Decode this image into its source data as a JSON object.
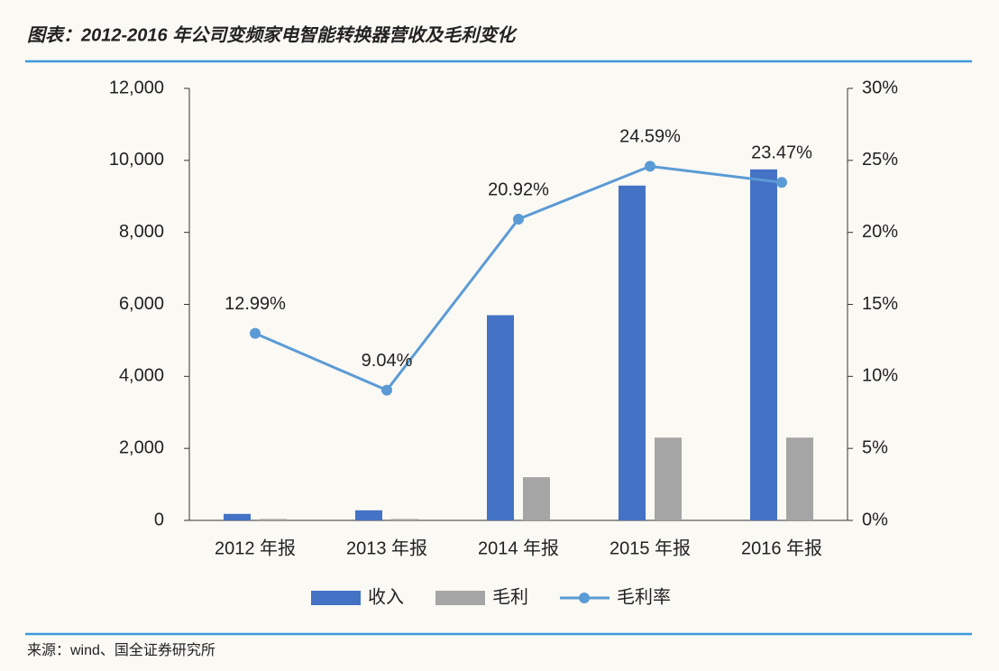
{
  "chart_data": {
    "type": "combo",
    "title": "图表：2012-2016 年公司变频家电智能转换器营收及毛利变化",
    "source": "来源：wind、国全证券研究所",
    "categories": [
      "2012 年报",
      "2013 年报",
      "2014 年报",
      "2015 年报",
      "2016 年报"
    ],
    "series": [
      {
        "name": "收入",
        "type": "bar",
        "color": "#4472c4",
        "values": [
          180,
          280,
          5700,
          9300,
          9750
        ]
      },
      {
        "name": "毛利",
        "type": "bar",
        "color": "#a5a5a5",
        "values": [
          40,
          40,
          1200,
          2300,
          2300
        ]
      },
      {
        "name": "毛利率",
        "type": "line",
        "axis": "y2",
        "color": "#5b9bd5",
        "values": [
          12.99,
          9.04,
          20.92,
          24.59,
          23.47
        ],
        "value_labels": [
          "12.99%",
          "9.04%",
          "20.92%",
          "24.59%",
          "23.47%"
        ]
      }
    ],
    "ylim": [
      0,
      12000
    ],
    "yticks": [
      0,
      {
        "value": 2000,
        "label": "2,000"
      },
      {
        "value": 4000,
        "label": "4,000"
      },
      {
        "value": 6000,
        "label": "6,000"
      },
      {
        "value": 8000,
        "label": "8,000"
      },
      {
        "value": 10000,
        "label": "10,000"
      },
      {
        "value": 12000,
        "label": "12,000"
      }
    ],
    "y2lim": [
      0,
      30
    ],
    "y2ticks": [
      {
        "value": 0,
        "label": "0%"
      },
      {
        "value": 5,
        "label": "5%"
      },
      {
        "value": 10,
        "label": "10%"
      },
      {
        "value": 15,
        "label": "15%"
      },
      {
        "value": 20,
        "label": "20%"
      },
      {
        "value": 25,
        "label": "25%"
      },
      {
        "value": 30,
        "label": "30%"
      }
    ],
    "legend": "bottom"
  }
}
